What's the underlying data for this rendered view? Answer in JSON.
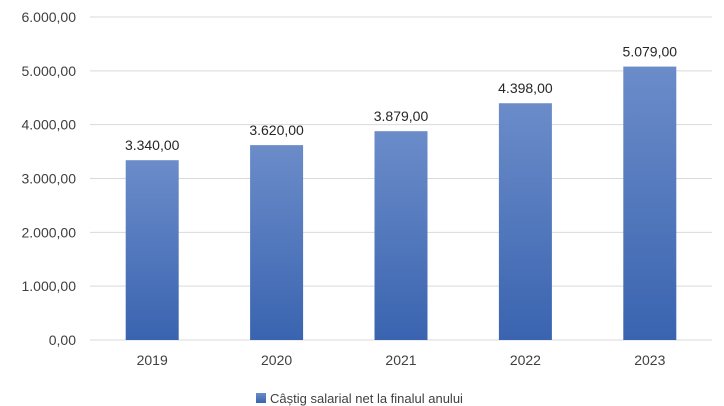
{
  "chart_data": {
    "type": "bar",
    "categories": [
      "2019",
      "2020",
      "2021",
      "2022",
      "2023"
    ],
    "series": [
      {
        "name": "Câștig salarial net la finalul anului",
        "values": [
          3340,
          3620,
          3879,
          4398,
          5079
        ],
        "labels": [
          "3.340,00",
          "3.620,00",
          "3.879,00",
          "4.398,00",
          "5.079,00"
        ]
      }
    ],
    "ylim": [
      0,
      6000
    ],
    "yticks": [
      0,
      1000,
      2000,
      3000,
      4000,
      5000,
      6000
    ],
    "ytick_labels": [
      "0,00",
      "1.000,00",
      "2.000,00",
      "3.000,00",
      "4.000,00",
      "5.000,00",
      "6.000,00"
    ],
    "grid": true,
    "legend": "bottom",
    "colors": {
      "bar_top": "#6b8cc9",
      "bar_bottom": "#3a64b0",
      "grid": "#d9d9d9"
    }
  }
}
